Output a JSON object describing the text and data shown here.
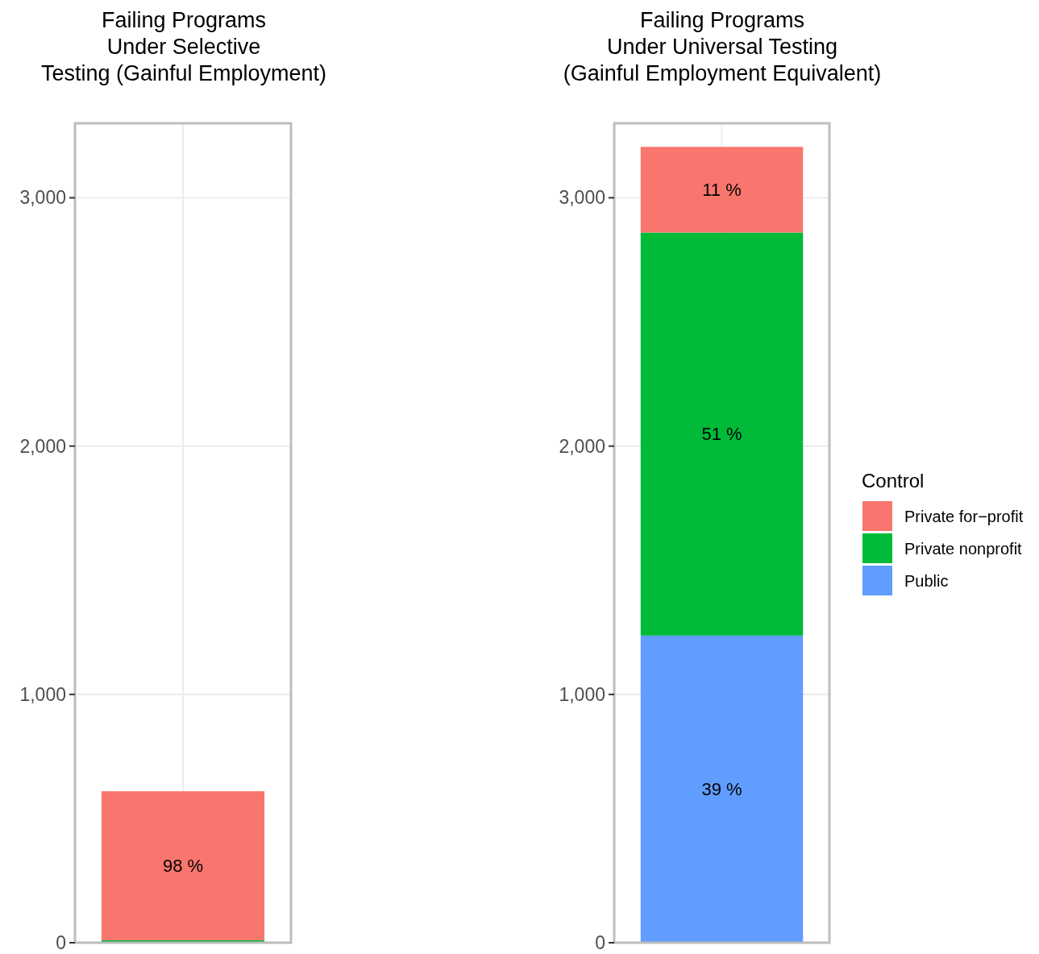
{
  "chart_data": [
    {
      "type": "bar",
      "title": "Failing Programs\nUnder Selective\nTesting (Gainful Employment)",
      "stacked": true,
      "categories": [
        null
      ],
      "ylim": [
        0,
        3300
      ],
      "yticks": [
        0,
        {
          "value": 1000,
          "label": "1,000"
        },
        {
          "value": 2000,
          "label": "2,000"
        },
        {
          "value": 3000,
          "label": "3,000"
        }
      ],
      "grid": true,
      "tick_labels": "y",
      "legend": false,
      "series": [
        {
          "color": "#619cff",
          "values": [
            0
          ]
        },
        {
          "color": "#00ba38",
          "values": [
            10
          ]
        },
        {
          "color": "#f8766d",
          "values": [
            600
          ]
        }
      ],
      "annotations": [
        "98 %"
      ]
    },
    {
      "type": "bar",
      "title": "Failing Programs\nUnder Universal Testing\n(Gainful Employment Equivalent)",
      "stacked": true,
      "categories": [
        null
      ],
      "ylim": [
        0,
        3300
      ],
      "yticks": [
        0,
        {
          "value": 1000,
          "label": "1,000"
        },
        {
          "value": 2000,
          "label": "2,000"
        },
        {
          "value": 3000,
          "label": "3,000"
        }
      ],
      "grid": true,
      "tick_labels": "y",
      "legend": "right",
      "legend_title": "Control",
      "series": [
        {
          "name": "Public",
          "color": "#619cff",
          "values": [
            1237
          ]
        },
        {
          "name": "Private nonprofit",
          "color": "#00ba38",
          "values": [
            1623
          ]
        },
        {
          "name": "Private for−profit",
          "color": "#f8766d",
          "values": [
            345
          ]
        }
      ],
      "annotations": [
        "39 %",
        "51 %",
        "11 %"
      ]
    }
  ]
}
